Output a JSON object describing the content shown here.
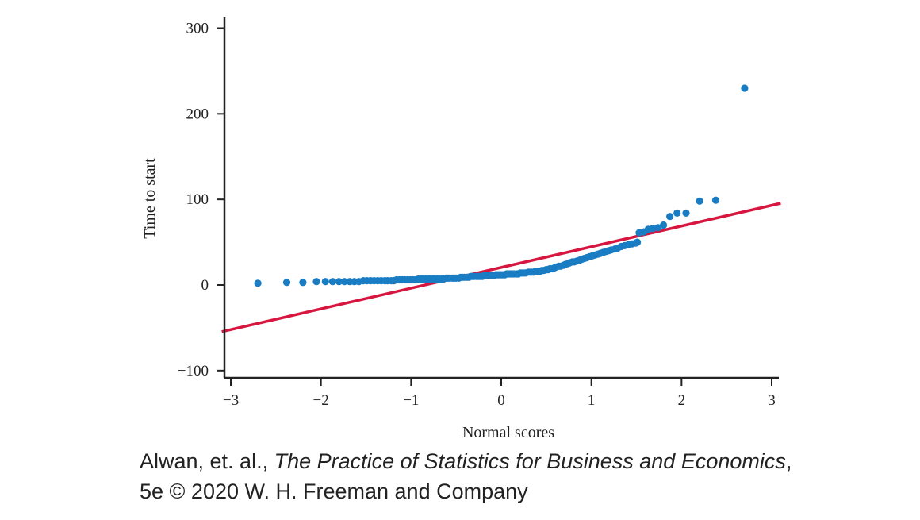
{
  "chart_data": {
    "type": "scatter",
    "title": "",
    "xlabel": "Normal scores",
    "ylabel": "Time to start",
    "xlim": [
      -3.1,
      3.1
    ],
    "ylim": [
      -110,
      305
    ],
    "xticks": [
      -3,
      -2,
      -1,
      0,
      1,
      2,
      3
    ],
    "xtick_labels": [
      "−3",
      "−2",
      "−1",
      "0",
      "1",
      "2",
      "3"
    ],
    "yticks": [
      -100,
      0,
      100,
      200,
      300
    ],
    "ytick_labels": [
      "−100",
      "0",
      "100",
      "200",
      "300"
    ],
    "grid": false,
    "legend": "none",
    "point_color": "#1a7dc4",
    "line_color": "#d6163f",
    "fit_line": {
      "slope": 24.2,
      "intercept": 20.5,
      "x_start": -3.1,
      "x_end": 3.1
    },
    "points": [
      [
        -2.7,
        2
      ],
      [
        -2.38,
        3
      ],
      [
        -2.2,
        3
      ],
      [
        -2.05,
        4
      ],
      [
        -1.95,
        4
      ],
      [
        -1.87,
        4
      ],
      [
        -1.8,
        4
      ],
      [
        -1.74,
        4
      ],
      [
        -1.68,
        4
      ],
      [
        -1.63,
        4
      ],
      [
        -1.58,
        4
      ],
      [
        -1.53,
        5
      ],
      [
        -1.49,
        5
      ],
      [
        -1.45,
        5
      ],
      [
        -1.41,
        5
      ],
      [
        -1.37,
        5
      ],
      [
        -1.33,
        5
      ],
      [
        -1.29,
        5
      ],
      [
        -1.26,
        5
      ],
      [
        -1.22,
        5
      ],
      [
        -1.19,
        5
      ],
      [
        -1.16,
        6
      ],
      [
        -1.13,
        6
      ],
      [
        -1.1,
        6
      ],
      [
        -1.07,
        6
      ],
      [
        -1.04,
        6
      ],
      [
        -1.01,
        6
      ],
      [
        -0.98,
        6
      ],
      [
        -0.95,
        6
      ],
      [
        -0.92,
        7
      ],
      [
        -0.89,
        7
      ],
      [
        -0.87,
        7
      ],
      [
        -0.84,
        7
      ],
      [
        -0.81,
        7
      ],
      [
        -0.79,
        7
      ],
      [
        -0.76,
        7
      ],
      [
        -0.74,
        7
      ],
      [
        -0.71,
        7
      ],
      [
        -0.69,
        7
      ],
      [
        -0.66,
        7
      ],
      [
        -0.64,
        7
      ],
      [
        -0.61,
        8
      ],
      [
        -0.59,
        8
      ],
      [
        -0.57,
        8
      ],
      [
        -0.54,
        8
      ],
      [
        -0.52,
        8
      ],
      [
        -0.5,
        8
      ],
      [
        -0.47,
        8
      ],
      [
        -0.45,
        9
      ],
      [
        -0.43,
        9
      ],
      [
        -0.41,
        9
      ],
      [
        -0.38,
        9
      ],
      [
        -0.36,
        9
      ],
      [
        -0.34,
        10
      ],
      [
        -0.32,
        10
      ],
      [
        -0.3,
        10
      ],
      [
        -0.27,
        10
      ],
      [
        -0.25,
        10
      ],
      [
        -0.23,
        10
      ],
      [
        -0.21,
        10
      ],
      [
        -0.19,
        11
      ],
      [
        -0.17,
        11
      ],
      [
        -0.14,
        11
      ],
      [
        -0.12,
        11
      ],
      [
        -0.1,
        11
      ],
      [
        -0.08,
        11
      ],
      [
        -0.06,
        12
      ],
      [
        -0.04,
        12
      ],
      [
        -0.02,
        12
      ],
      [
        0,
        12
      ],
      [
        0.02,
        12
      ],
      [
        0.04,
        12
      ],
      [
        0.06,
        13
      ],
      [
        0.08,
        13
      ],
      [
        0.1,
        13
      ],
      [
        0.12,
        13
      ],
      [
        0.14,
        13
      ],
      [
        0.17,
        13
      ],
      [
        0.19,
        13
      ],
      [
        0.21,
        14
      ],
      [
        0.23,
        14
      ],
      [
        0.25,
        14
      ],
      [
        0.27,
        14
      ],
      [
        0.3,
        15
      ],
      [
        0.32,
        15
      ],
      [
        0.34,
        15
      ],
      [
        0.36,
        15
      ],
      [
        0.38,
        16
      ],
      [
        0.41,
        16
      ],
      [
        0.43,
        16
      ],
      [
        0.45,
        17
      ],
      [
        0.47,
        17
      ],
      [
        0.5,
        18
      ],
      [
        0.52,
        18
      ],
      [
        0.54,
        19
      ],
      [
        0.57,
        19
      ],
      [
        0.59,
        20
      ],
      [
        0.61,
        21
      ],
      [
        0.64,
        22
      ],
      [
        0.66,
        22
      ],
      [
        0.69,
        23
      ],
      [
        0.71,
        24
      ],
      [
        0.74,
        25
      ],
      [
        0.76,
        26
      ],
      [
        0.79,
        27
      ],
      [
        0.81,
        27
      ],
      [
        0.84,
        28
      ],
      [
        0.87,
        29
      ],
      [
        0.89,
        30
      ],
      [
        0.92,
        31
      ],
      [
        0.95,
        32
      ],
      [
        0.98,
        33
      ],
      [
        1.01,
        34
      ],
      [
        1.04,
        35
      ],
      [
        1.07,
        36
      ],
      [
        1.1,
        37
      ],
      [
        1.13,
        38
      ],
      [
        1.16,
        39
      ],
      [
        1.19,
        40
      ],
      [
        1.22,
        41
      ],
      [
        1.26,
        42
      ],
      [
        1.29,
        43
      ],
      [
        1.33,
        45
      ],
      [
        1.37,
        46
      ],
      [
        1.41,
        47
      ],
      [
        1.45,
        48
      ],
      [
        1.49,
        49
      ],
      [
        1.51,
        50
      ],
      [
        1.53,
        61
      ],
      [
        1.58,
        62
      ],
      [
        1.63,
        65
      ],
      [
        1.68,
        66
      ],
      [
        1.74,
        67
      ],
      [
        1.8,
        70
      ],
      [
        1.87,
        80
      ],
      [
        1.95,
        84
      ],
      [
        2.05,
        84
      ],
      [
        2.2,
        98
      ],
      [
        2.38,
        99
      ],
      [
        2.7,
        230
      ]
    ]
  },
  "caption": {
    "authors": "Alwan, et. al., ",
    "book_title": "The Practice of Statistics for Business and Economics",
    "after_title": ",",
    "line2": "5e © 2020 W. H. Freeman and Company"
  }
}
